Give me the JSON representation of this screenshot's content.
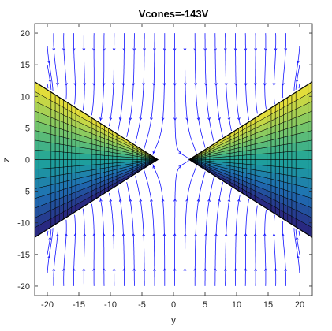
{
  "chart_data": {
    "type": "streamline",
    "title": "Vcones=-143V",
    "xlabel": "y",
    "ylabel": "z",
    "xlim": [
      -22,
      22
    ],
    "ylim": [
      -21.5,
      21.5
    ],
    "xticks": [
      -20,
      -15,
      -10,
      -5,
      0,
      5,
      10,
      15,
      20
    ],
    "yticks": [
      -20,
      -15,
      -10,
      -5,
      0,
      5,
      10,
      15,
      20
    ],
    "field_extent": {
      "y": [
        -20,
        20
      ],
      "z": [
        -20,
        20
      ]
    },
    "streamline_color": "#1414ff",
    "cones": [
      {
        "side": "left",
        "apex": [
          -2.5,
          0
        ],
        "base_y": -22,
        "half_height_at_base": 12.3
      },
      {
        "side": "right",
        "apex": [
          2.5,
          0
        ],
        "base_y": 22,
        "half_height_at_base": 12.3
      }
    ],
    "cone_colormap": [
      "#2a1f7a",
      "#1f6fb4",
      "#1ea59a",
      "#7ec865",
      "#f0e034"
    ],
    "cone_potential_v": -143,
    "grid": false,
    "box": true
  }
}
